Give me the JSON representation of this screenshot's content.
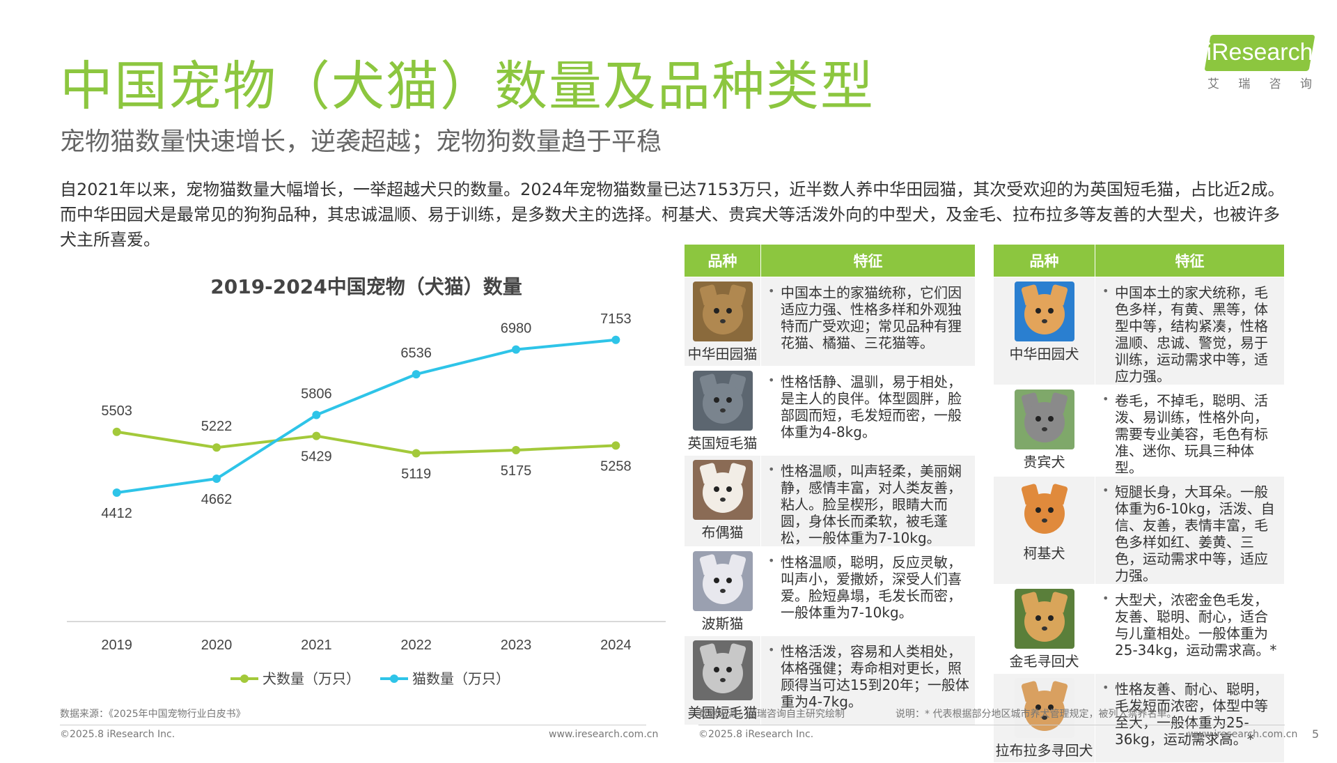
{
  "header": {
    "title": "中国宠物（犬猫）数量及品种类型",
    "subtitle": "宠物猫数量快速增长，逆袭超越；宠物狗数量趋于平稳",
    "logo_text": "iResearch",
    "logo_sub": [
      "艾",
      "瑞",
      "咨",
      "询"
    ]
  },
  "intro": "自2021年以来，宠物猫数量大幅增长，一举超越犬只的数量。2024年宠物猫数量已达7153万只，近半数人养中华田园猫，其次受欢迎的为英国短毛猫，占比近2成。而中华田园犬是最常见的狗狗品种，其忠诚温顺、易于训练，是多数犬主的选择。柯基犬、贵宾犬等活泼外向的中型犬，及金毛、拉布拉多等友善的大型犬，也被许多犬主所喜爱。",
  "chart_data": {
    "type": "line",
    "title": "2019-2024中国宠物（犬猫）数量",
    "categories": [
      "2019",
      "2020",
      "2021",
      "2022",
      "2023",
      "2024"
    ],
    "series": [
      {
        "name": "犬数量（万只）",
        "values": [
          5503,
          5222,
          5429,
          5119,
          5175,
          5258
        ],
        "color": "#a3c93a"
      },
      {
        "name": "猫数量（万只）",
        "values": [
          4412,
          4662,
          5806,
          6536,
          6980,
          7153
        ],
        "color": "#2ec4e8"
      }
    ],
    "ylim": [
      4000,
      7500
    ],
    "grid": false,
    "legend": "bottom"
  },
  "cat_table": {
    "headers": [
      "品种",
      "特征"
    ],
    "rows": [
      {
        "breed": "中华田园猫",
        "text": "中国本土的家猫统称，它们因适应力强、性格多样和外观独特而广受欢迎；常见品种有狸花猫、橘猫、三花猫等。",
        "colors": [
          "#8a6a3c",
          "#b08850"
        ]
      },
      {
        "breed": "英国短毛猫",
        "text": "性格恬静、温驯，易于相处，是主人的良伴。体型圆胖，脸部圆而短，毛发短而密，一般体重为4-8kg。",
        "colors": [
          "#5c6670",
          "#7a848e"
        ]
      },
      {
        "breed": "布偶猫",
        "text": "性格温顺，叫声轻柔，美丽娴静，感情丰富，对人类友善，粘人。脸呈楔形，眼睛大而圆，身体长而柔软，被毛蓬松，一般体重为7-10kg。",
        "colors": [
          "#8a6b55",
          "#f2ede6"
        ]
      },
      {
        "breed": "波斯猫",
        "text": "性格温顺，聪明，反应灵敏，叫声小，爱撒娇，深受人们喜爱。脸短鼻塌，毛发长而密，一般体重为7-10kg。",
        "colors": [
          "#9aa0b0",
          "#e8e8ee"
        ]
      },
      {
        "breed": "美国短毛猫",
        "text": "性格活泼，容易和人类相处，体格强健；寿命相对更长，照顾得当可达15到20年；一般体重为4-7kg。",
        "colors": [
          "#6b6b6b",
          "#c8c8c8"
        ]
      }
    ]
  },
  "dog_table": {
    "headers": [
      "品种",
      "特征"
    ],
    "rows": [
      {
        "breed": "中华田园犬",
        "text": "中国本土的家犬统称，毛色多样，有黄、黑等，体型中等，结构紧凑，性格温顺、忠诚、警觉，易于训练，运动需求中等，适应力强。",
        "colors": [
          "#2a7fd0",
          "#e3a45a"
        ]
      },
      {
        "breed": "贵宾犬",
        "text": "卷毛，不掉毛，聪明、活泼、易训练，性格外向，需要专业美容，毛色有标准、迷你、玩具三种体型。",
        "colors": [
          "#7fa86a",
          "#8a8a8a"
        ]
      },
      {
        "breed": "柯基犬",
        "text": "短腿长身，大耳朵。一般体重为6-10kg，活泼、自信、友善，表情丰富，毛色多样如红、姜黄、三色，运动需求中等，适应力强。",
        "colors": [
          "#f2f2f2",
          "#e08a3c"
        ]
      },
      {
        "breed": "金毛寻回犬",
        "text": "大型犬，浓密金色毛发，友善、聪明、耐心，适合与儿童相处。一般体重为25-34kg，运动需求高。*",
        "colors": [
          "#5a7f3a",
          "#d9a55a"
        ]
      },
      {
        "breed": "拉布拉多寻回犬",
        "text": "性格友善、耐心、聪明，毛发短而浓密，体型中等至大，一般体重为25-36kg，运动需求高。*",
        "colors": [
          "#f0f0f0",
          "#d9a060"
        ]
      }
    ]
  },
  "footer": {
    "source_left": "数据来源：《2025年中国宠物行业白皮书》",
    "copyright_left": "©2025.8 iResearch Inc.",
    "site_left": "www.iresearch.com.cn",
    "source_right": "数据来源：艾瑞咨询自主研究绘制",
    "note_right": "说明：* 代表根据部分地区城市养犬管理规定，被列入禁养名单。",
    "copyright_right": "©2025.8 iResearch Inc.",
    "site_right": "www.iresearch.com.cn",
    "page": "5"
  }
}
